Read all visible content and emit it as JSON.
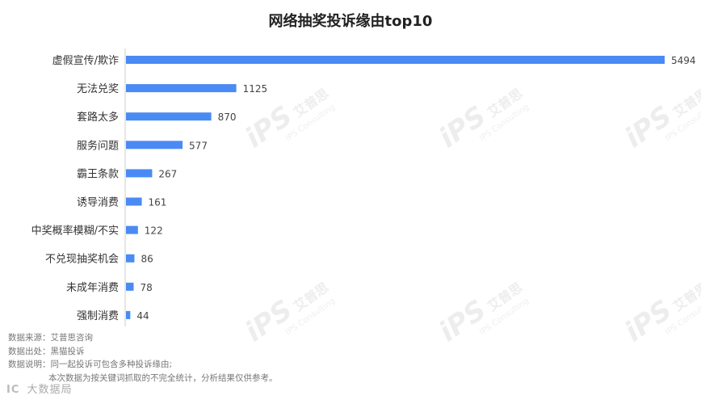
{
  "chart_data": {
    "type": "bar",
    "orientation": "horizontal",
    "title": "网络抽奖投诉缘由top10",
    "categories": [
      "虚假宣传/欺诈",
      "无法兑奖",
      "套路太多",
      "服务问题",
      "霸王条款",
      "诱导消费",
      "中奖概率模糊/不实",
      "不兑现抽奖机会",
      "未成年消费",
      "强制消费"
    ],
    "values": [
      5494,
      1125,
      870,
      577,
      267,
      161,
      122,
      86,
      78,
      44
    ],
    "bar_color": "#4a8af4",
    "xlim": [
      0,
      5494
    ],
    "grid": false,
    "legend": "none"
  },
  "notes": [
    "数据来源：艾普思咨询",
    "数据出处：黑猫投诉",
    "数据说明：同一起投诉可包含多种投诉缘由;",
    "本次数据为按关键词抓取的不完全统计，分析结果仅供参考。"
  ],
  "brand": {
    "logo": "IC",
    "name": "大数据局"
  },
  "watermark": {
    "logo": "iPS",
    "name": "艾普思",
    "sub": "IPS Consulting"
  }
}
